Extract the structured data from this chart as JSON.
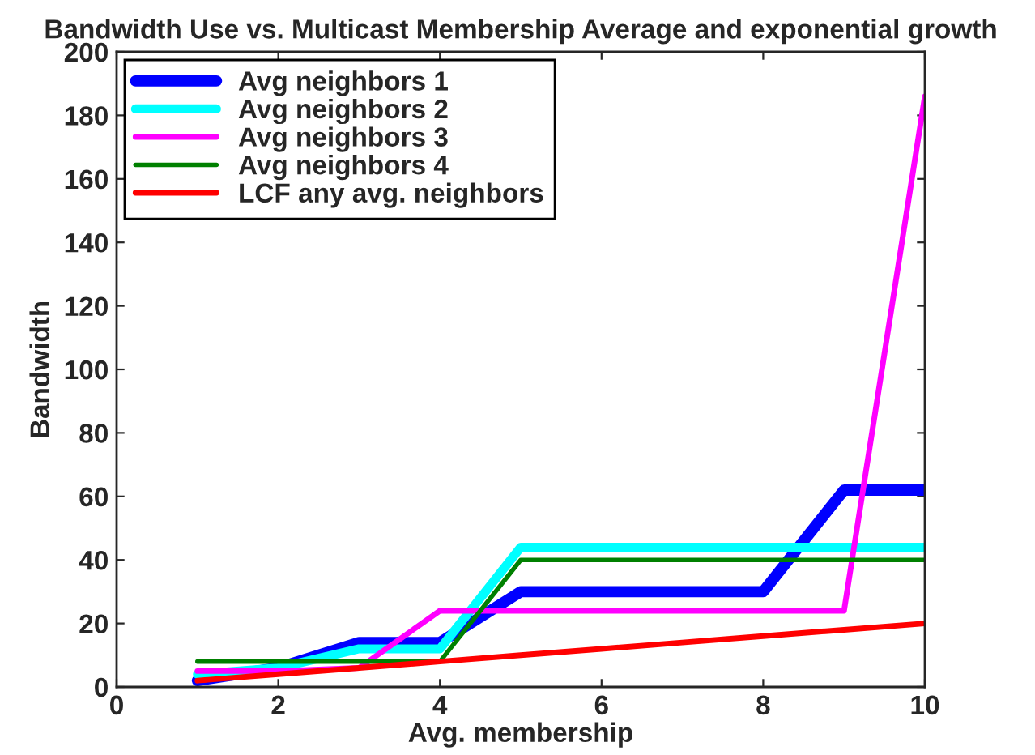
{
  "chart_data": {
    "type": "line",
    "title": "Bandwidth Use vs. Multicast Membership Average and exponential growth",
    "xlabel": "Avg. membership",
    "ylabel": "Bandwidth",
    "x": [
      1,
      2,
      3,
      4,
      5,
      6,
      7,
      8,
      9,
      10
    ],
    "series": [
      {
        "name": "Avg neighbors 1",
        "color": "#0000ff",
        "values": [
          2,
          6,
          14,
          14,
          30,
          30,
          30,
          30,
          62,
          62
        ]
      },
      {
        "name": "Avg neighbors 2",
        "color": "#00ffff",
        "values": [
          4,
          6,
          12,
          12,
          44,
          44,
          44,
          44,
          44,
          44
        ]
      },
      {
        "name": "Avg neighbors 3",
        "color": "#ff00ff",
        "values": [
          5,
          5,
          6,
          24,
          24,
          24,
          24,
          24,
          24,
          186
        ]
      },
      {
        "name": "Avg neighbors 4",
        "color": "#008000",
        "values": [
          8,
          8,
          8,
          8,
          40,
          40,
          40,
          40,
          40,
          40
        ]
      },
      {
        "name": "LCF any avg. neighbors",
        "color": "#ff0000",
        "values": [
          2,
          4,
          6,
          8,
          10,
          12,
          14,
          16,
          18,
          20
        ]
      }
    ],
    "xlim": [
      0,
      10
    ],
    "ylim": [
      0,
      200
    ],
    "xticks": [
      0,
      2,
      4,
      6,
      8,
      10
    ],
    "yticks": [
      0,
      20,
      40,
      60,
      80,
      100,
      120,
      140,
      160,
      180,
      200
    ],
    "grid": false,
    "legend": "top left",
    "marker": "none",
    "line_style": "solid"
  }
}
